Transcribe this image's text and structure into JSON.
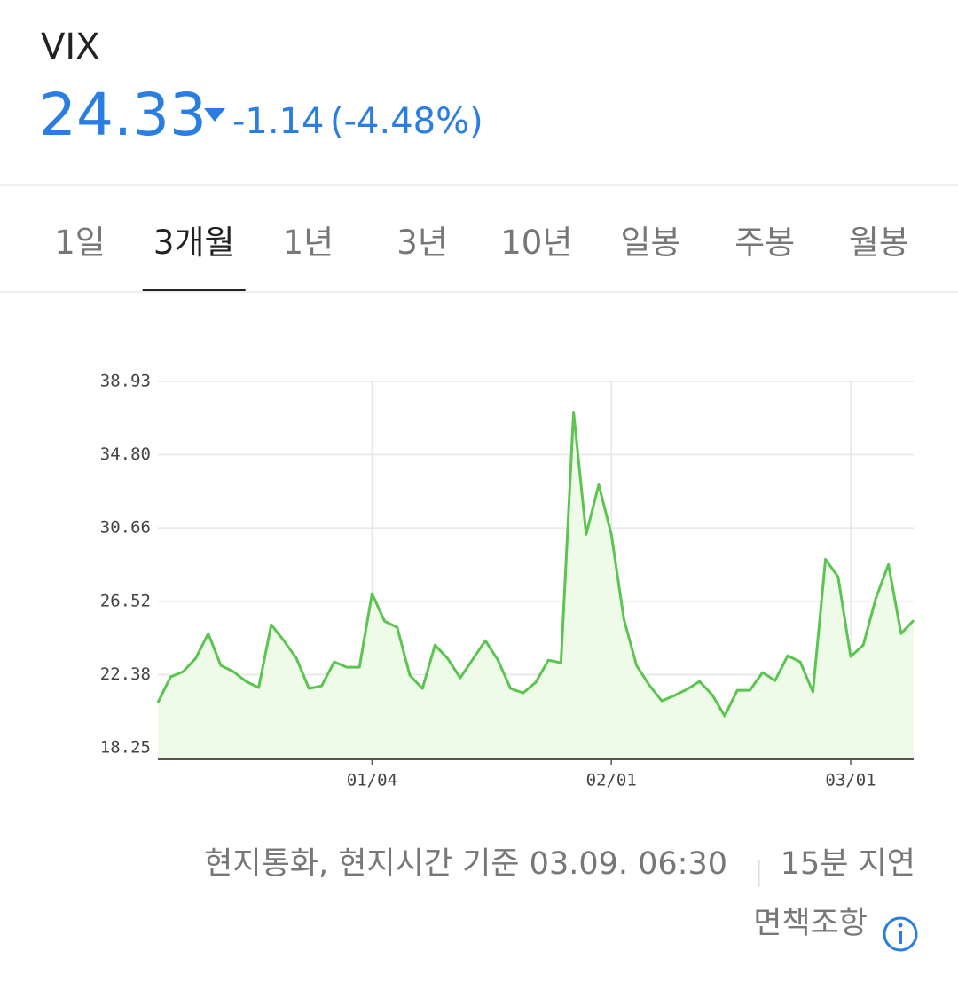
{
  "header": {
    "symbol": "VIX",
    "price": "24.33",
    "change": "-1.14",
    "change_pct": "(-4.48%)"
  },
  "tabs": {
    "items": [
      "1일",
      "3개월",
      "1년",
      "3년",
      "10년",
      "일봉",
      "주봉",
      "월봉"
    ],
    "selected": 1
  },
  "chart_data": {
    "type": "line",
    "color": "#5cc450",
    "fill": "#eefbe9",
    "grid": true,
    "categories": [
      null,
      null,
      null,
      null,
      null,
      null,
      null,
      null,
      null,
      null,
      null,
      null,
      null,
      null,
      null,
      null,
      null,
      "01/04",
      null,
      null,
      null,
      null,
      null,
      null,
      null,
      null,
      null,
      null,
      null,
      null,
      null,
      null,
      null,
      null,
      null,
      null,
      "02/01",
      null,
      null,
      null,
      null,
      null,
      null,
      null,
      null,
      null,
      null,
      null,
      null,
      null,
      null,
      null,
      null,
      null,
      null,
      "03/01",
      null,
      null,
      null,
      null,
      null
    ],
    "values": [
      20.8,
      22.25,
      22.55,
      23.3,
      24.7,
      22.9,
      22.55,
      22.0,
      21.65,
      25.2,
      24.3,
      23.3,
      21.6,
      21.75,
      23.1,
      22.8,
      22.8,
      26.95,
      25.4,
      25.05,
      22.35,
      21.6,
      24.05,
      23.3,
      22.2,
      23.25,
      24.3,
      23.2,
      21.6,
      21.35,
      21.95,
      23.2,
      23.05,
      37.2,
      30.3,
      33.1,
      30.3,
      25.5,
      22.9,
      21.8,
      20.9,
      21.2,
      21.55,
      22.0,
      21.25,
      20.05,
      21.5,
      21.5,
      22.5,
      22.05,
      23.45,
      23.1,
      21.4,
      28.9,
      27.9,
      23.4,
      24.05,
      26.7,
      28.6,
      24.7,
      25.45
    ],
    "ylim": [
      17.6,
      38.93
    ],
    "yticks": [
      18.25,
      22.38,
      26.52,
      30.66,
      {
        "value": 34.8,
        "label": "34.80"
      },
      38.93
    ]
  },
  "footer": {
    "basis": "현지통화, 현지시간 기준 03.09. 06:30",
    "delay": "15분 지연",
    "disclaimer": "면책조항"
  }
}
